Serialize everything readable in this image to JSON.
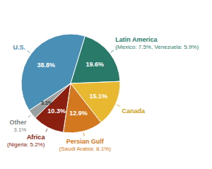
{
  "chart_data": {
    "type": "pie",
    "categories": [
      "U.S.",
      "Latin America",
      "Canada",
      "Persian Gulf",
      "Africa",
      "Other"
    ],
    "values": [
      38.8,
      19.6,
      15.1,
      12.9,
      10.3,
      3.1
    ],
    "value_labels": [
      "38.8%",
      "19.6%",
      "15.1%",
      "12.9%",
      "10.3%",
      "3.1%"
    ],
    "colors": [
      "#4a8fb5",
      "#2a7a6a",
      "#e8b830",
      "#d47820",
      "#8b2010",
      "#9aA0a0"
    ],
    "data_labels": true,
    "annotations": [
      {
        "category": "Latin America",
        "text": "(Mexico: 7.5%, Venezuela: 5.9%)"
      },
      {
        "category": "Persian Gulf",
        "text": "(Saudi Arabia: 8.1%)"
      },
      {
        "category": "Africa",
        "text": "(Nigeria: 5.2%)"
      },
      {
        "category": "Other",
        "text": "3.1%"
      }
    ]
  }
}
